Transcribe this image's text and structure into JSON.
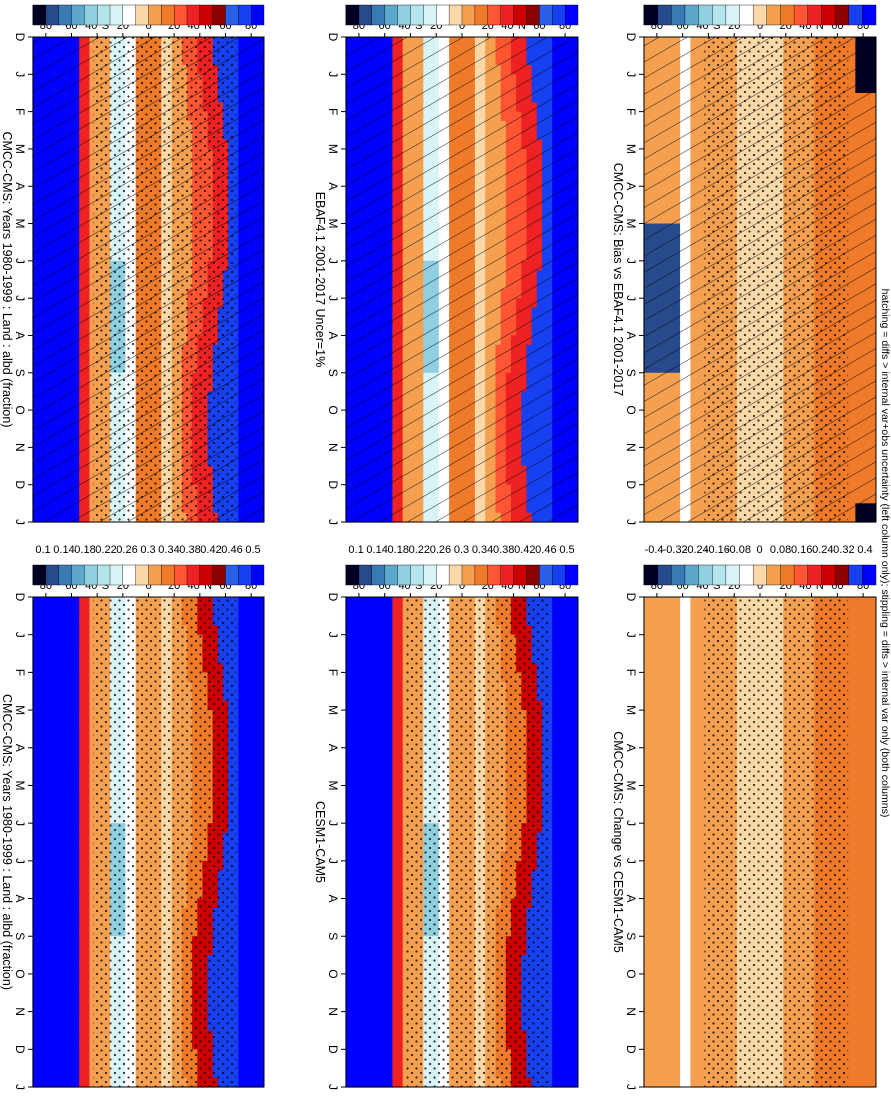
{
  "footnote": "hatching = diffs > internal var+obs uncertainty (left column only); stippling = diffs > internal var only (both columns)",
  "palette": {
    "absolute": [
      "#0000ff",
      "#1640f0",
      "#2a60e8",
      "#8b0000",
      "#cc0000",
      "#ee2222",
      "#ff5533",
      "#ee7a2a",
      "#f4a050",
      "#fbd8a8",
      "#ffffff",
      "#d9f4f7",
      "#b4e4ec",
      "#8fd0e0",
      "#5ca8cc",
      "#3a7ab4",
      "#264a8c",
      "#000022"
    ],
    "difference": [
      "#0000ff",
      "#1640f0",
      "#8b0000",
      "#cc0000",
      "#ee2222",
      "#ff5533",
      "#ee7a2a",
      "#f4a050",
      "#fbd8a8",
      "#ffffff",
      "#d9f4f7",
      "#b4e4ec",
      "#8fd0e0",
      "#5ca8cc",
      "#3a7ab4",
      "#264a8c",
      "#000022"
    ]
  },
  "chart_data": [
    {
      "type": "heatmap",
      "title": "CMCC-CMS: Years 1980-1999 : Land : albd (fraction)",
      "months": [
        "D",
        "J",
        "F",
        "M",
        "A",
        "M",
        "J",
        "J",
        "A",
        "S",
        "O",
        "N",
        "D",
        "J"
      ],
      "lat_ticks": [
        "80",
        "60",
        "40°N",
        "20",
        "0",
        "20",
        "40°S",
        "60",
        "80"
      ],
      "colorbar_ticks": [
        "0.5",
        "0.46",
        "0.42",
        "0.38",
        "0.34",
        "0.3",
        "0.26",
        "0.22",
        "0.18",
        "0.14",
        "0.1"
      ],
      "hatching": true,
      "stippling": true
    },
    {
      "type": "heatmap",
      "title": "CMCC-CMS: Years 1980-1999 : Land : albd (fraction)",
      "months": [
        "D",
        "J",
        "F",
        "M",
        "A",
        "M",
        "J",
        "J",
        "A",
        "S",
        "O",
        "N",
        "D",
        "J"
      ],
      "lat_ticks": [
        "80",
        "60",
        "40°N",
        "20",
        "0",
        "20",
        "40°S",
        "60",
        "80"
      ],
      "colorbar_ticks": [
        "0.5",
        "0.46",
        "0.42",
        "0.38",
        "0.34",
        "0.3",
        "0.26",
        "0.22",
        "0.18",
        "0.14",
        "0.1"
      ],
      "hatching": false,
      "stippling": true
    },
    {
      "type": "heatmap",
      "title": "EBAF4.1 2001-2017 Uncer=1%",
      "months": [
        "D",
        "J",
        "F",
        "M",
        "A",
        "M",
        "J",
        "J",
        "A",
        "S",
        "O",
        "N",
        "D",
        "J"
      ],
      "lat_ticks": [
        "80",
        "60",
        "40°N",
        "20",
        "0",
        "20",
        "40°S",
        "60",
        "80"
      ],
      "colorbar_ticks": [
        "0.5",
        "0.46",
        "0.42",
        "0.38",
        "0.34",
        "0.3",
        "0.26",
        "0.22",
        "0.18",
        "0.14",
        "0.1"
      ],
      "hatching": true,
      "stippling": false
    },
    {
      "type": "heatmap",
      "title": "CESM1-CAM5",
      "months": [
        "D",
        "J",
        "F",
        "M",
        "A",
        "M",
        "J",
        "J",
        "A",
        "S",
        "O",
        "N",
        "D",
        "J"
      ],
      "lat_ticks": [
        "80",
        "60",
        "40°N",
        "20",
        "0",
        "20",
        "40°S",
        "60",
        "80"
      ],
      "colorbar_ticks": [
        "0.5",
        "0.46",
        "0.42",
        "0.38",
        "0.34",
        "0.3",
        "0.26",
        "0.22",
        "0.18",
        "0.14",
        "0.1"
      ],
      "hatching": false,
      "stippling": true
    },
    {
      "type": "heatmap",
      "title": "CMCC-CMS: Bias vs EBAF4.1 2001-2017",
      "months": [
        "D",
        "J",
        "F",
        "M",
        "A",
        "M",
        "J",
        "J",
        "A",
        "S",
        "O",
        "N",
        "D",
        "J"
      ],
      "lat_ticks": [
        "80",
        "60",
        "40°N",
        "20",
        "0",
        "20",
        "40°S",
        "60",
        "80"
      ],
      "colorbar_ticks": [
        "0.4",
        "0.32",
        "0.24",
        "0.16",
        "0.08",
        "0",
        "-0.08",
        "-0.16",
        "-0.24",
        "-0.32",
        "-0.4"
      ],
      "hatching": true,
      "stippling": true
    },
    {
      "type": "heatmap",
      "title": "CMCC-CMS: Change vs CESM1-CAM5",
      "months": [
        "D",
        "J",
        "F",
        "M",
        "A",
        "M",
        "J",
        "J",
        "A",
        "S",
        "O",
        "N",
        "D",
        "J"
      ],
      "lat_ticks": [
        "80",
        "60",
        "40°N",
        "20",
        "0",
        "20",
        "40°S",
        "60",
        "80"
      ],
      "colorbar_ticks": [
        "0.4",
        "0.32",
        "0.24",
        "0.16",
        "0.08",
        "0",
        "-0.08",
        "-0.16",
        "-0.24",
        "-0.32",
        "-0.4"
      ],
      "hatching": false,
      "stippling": true
    }
  ]
}
